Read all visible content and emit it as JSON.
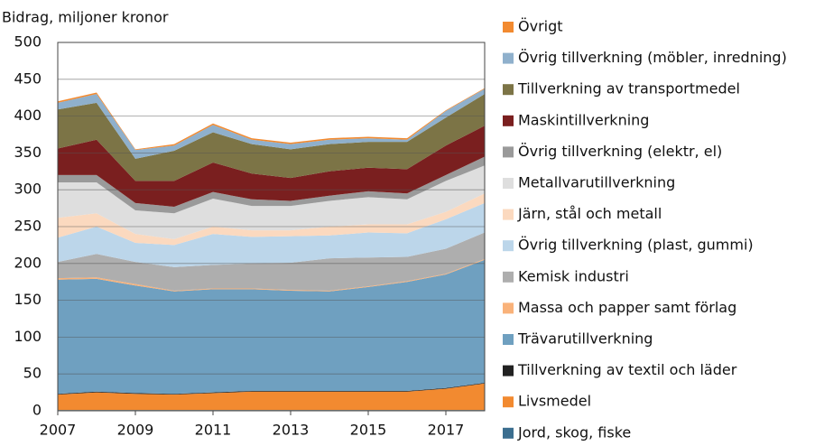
{
  "chart_data": {
    "type": "stacked_area",
    "y_label": "Bidrag, miljoner kronor",
    "x": [
      2007,
      2008,
      2009,
      2010,
      2011,
      2012,
      2013,
      2014,
      2015,
      2016,
      2017,
      2018
    ],
    "xlim": [
      2007,
      2018
    ],
    "xticks": [
      2007,
      2009,
      2011,
      2013,
      2015,
      2017
    ],
    "ylim": [
      0,
      500
    ],
    "yticks": [
      0,
      50,
      100,
      150,
      200,
      250,
      300,
      350,
      400,
      450,
      500
    ],
    "grid": true,
    "series": [
      {
        "name": "Jord, skog, fiske",
        "color": "#3b6e8f",
        "values": [
          1,
          1,
          1,
          1,
          1,
          1,
          1,
          1,
          1,
          1,
          1,
          1
        ]
      },
      {
        "name": "Livsmedel",
        "color": "#f28a30",
        "values": [
          21,
          24,
          22,
          21,
          23,
          25,
          25,
          25,
          25,
          25,
          29,
          36
        ]
      },
      {
        "name": "Tillverkning av textil och läder",
        "color": "#222222",
        "values": [
          1,
          1,
          1,
          1,
          1,
          1,
          1,
          1,
          1,
          1,
          1,
          1
        ]
      },
      {
        "name": "Trävarutillverkning",
        "color": "#6fa0c0",
        "values": [
          155,
          153,
          146,
          139,
          140,
          138,
          136,
          135,
          141,
          148,
          154,
          167
        ]
      },
      {
        "name": "Massa och papper samt förlag",
        "color": "#f9b27a",
        "values": [
          2,
          2,
          2,
          1,
          1,
          1,
          1,
          1,
          1,
          1,
          1,
          1
        ]
      },
      {
        "name": "Kemisk industri",
        "color": "#aeaeae",
        "values": [
          22,
          32,
          30,
          32,
          32,
          34,
          37,
          44,
          39,
          33,
          34,
          36
        ]
      },
      {
        "name": "Övrig tillverkning (plast, gummi)",
        "color": "#bcd6ea",
        "values": [
          33,
          37,
          26,
          30,
          42,
          36,
          36,
          31,
          34,
          32,
          40,
          40
        ]
      },
      {
        "name": "Järn, stål och metall",
        "color": "#fbd9bf",
        "values": [
          27,
          18,
          12,
          8,
          10,
          9,
          8,
          12,
          11,
          12,
          10,
          13
        ]
      },
      {
        "name": "Metallvarutillverkning",
        "color": "#dedede",
        "values": [
          48,
          42,
          32,
          35,
          38,
          33,
          33,
          35,
          37,
          34,
          42,
          38
        ]
      },
      {
        "name": "Övrig tillverkning (elektr, el)",
        "color": "#9a9a9a",
        "values": [
          10,
          10,
          10,
          9,
          9,
          9,
          7,
          7,
          8,
          8,
          8,
          12
        ]
      },
      {
        "name": "Maskintillverkning",
        "color": "#7a1f1f",
        "values": [
          36,
          48,
          30,
          35,
          40,
          35,
          31,
          33,
          32,
          33,
          40,
          42
        ]
      },
      {
        "name": "Tillverkning av transportmedel",
        "color": "#7c7446",
        "values": [
          53,
          50,
          30,
          41,
          41,
          40,
          39,
          37,
          35,
          37,
          38,
          43
        ]
      },
      {
        "name": "Övrig tillverkning (möbler, inredning)",
        "color": "#8fb0cc",
        "values": [
          9,
          12,
          12,
          7,
          10,
          6,
          7,
          6,
          5,
          3,
          9,
          7
        ]
      },
      {
        "name": "Övrigt",
        "color": "#f28a30",
        "values": [
          2,
          2,
          1,
          2,
          2,
          2,
          2,
          2,
          2,
          2,
          1,
          1
        ]
      }
    ]
  }
}
